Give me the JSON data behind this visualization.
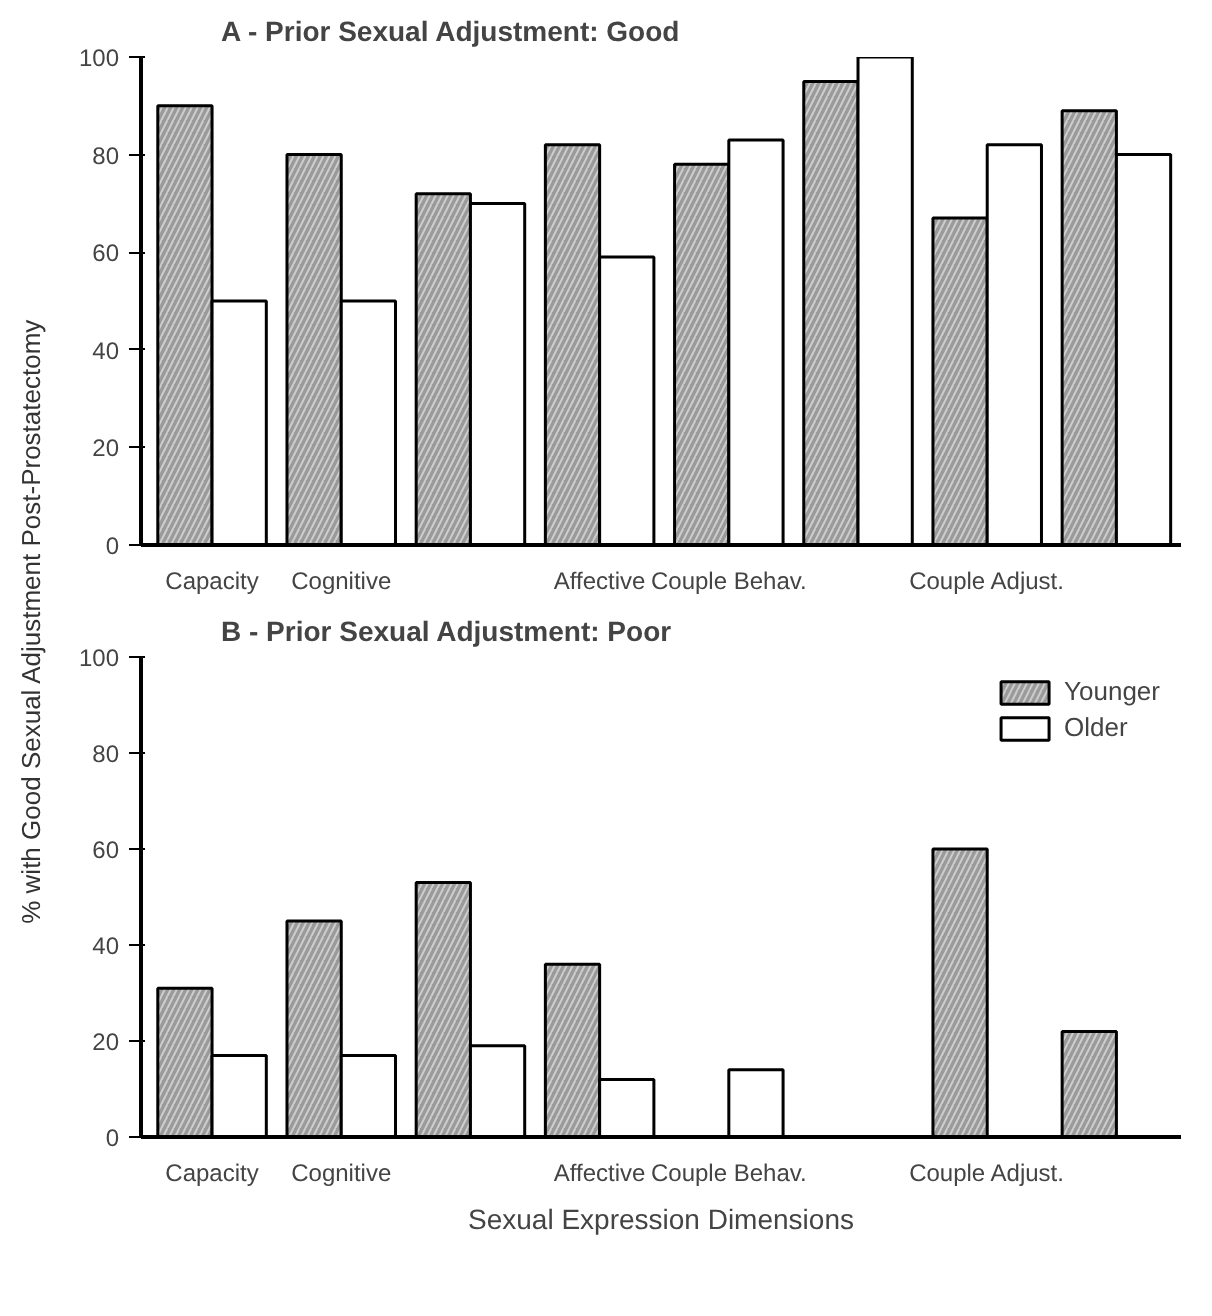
{
  "chart_data": [
    {
      "type": "bar",
      "title": "A - Prior Sexual Adjustment: Good",
      "ylabel": "% with Good Sexual Adjustment Post-Prostatectomy",
      "categories": [
        "Capacity",
        "Cognitive",
        null,
        "Affective",
        "Couple Behav.",
        null,
        "Couple Adjust.",
        null
      ],
      "series": [
        {
          "color": "#9a9a9a",
          "values": [
            90,
            80,
            72,
            82,
            78,
            95,
            67,
            89
          ]
        },
        {
          "color": "#ffffff",
          "values": [
            50,
            50,
            70,
            59,
            83,
            100,
            82,
            80
          ]
        }
      ],
      "ylim": [
        0,
        100
      ],
      "yticks": [
        0,
        20,
        40,
        60,
        80,
        100
      ],
      "grid": false,
      "legend": false
    },
    {
      "type": "bar",
      "title": "B - Prior Sexual Adjustment: Poor",
      "xlabel": "Sexual Expression Dimensions",
      "categories": [
        "Capacity",
        "Cognitive",
        null,
        "Affective",
        "Couple Behav.",
        null,
        "Couple Adjust.",
        null
      ],
      "series": [
        {
          "name": "Younger",
          "color": "#9a9a9a",
          "values": [
            31,
            45,
            53,
            36,
            0,
            0,
            60,
            22
          ]
        },
        {
          "name": "Older",
          "color": "#ffffff",
          "values": [
            17,
            17,
            19,
            12,
            14,
            0,
            0,
            0
          ]
        }
      ],
      "ylim": [
        0,
        100
      ],
      "yticks": [
        0,
        20,
        40,
        60,
        80,
        100
      ],
      "grid": false,
      "legend": "top right"
    }
  ]
}
